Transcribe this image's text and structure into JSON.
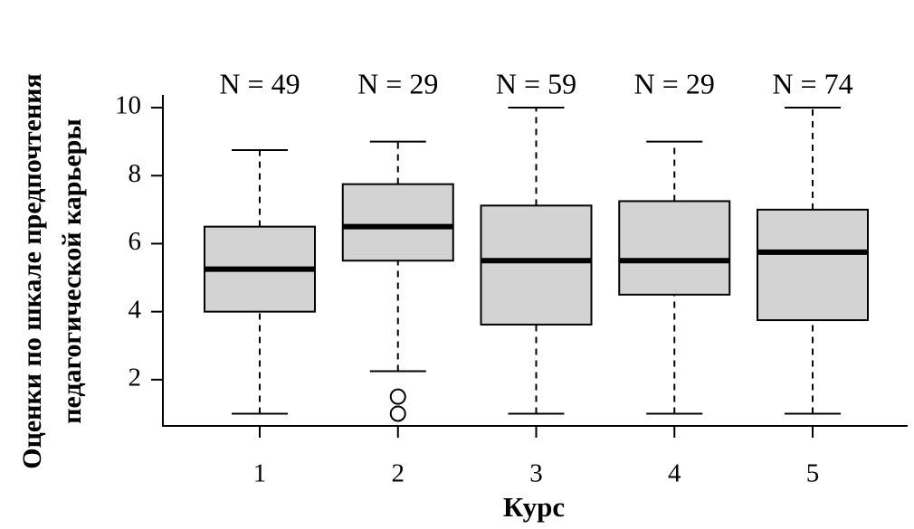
{
  "chart_data": {
    "type": "box",
    "ylabel": [
      "Оценки по шкале предпочтения",
      "педагогической карьеры"
    ],
    "xlabel": "Курс",
    "categories": [
      "1",
      "2",
      "3",
      "4",
      "5"
    ],
    "annotations": [
      "N = 49",
      "N = 29",
      "N = 59",
      "N = 29",
      "N = 74"
    ],
    "boxes": [
      {
        "min": 1,
        "q1": 4.0,
        "median": 5.25,
        "q3": 6.5,
        "max": 8.75,
        "outliers": []
      },
      {
        "min": 2.25,
        "q1": 5.5,
        "median": 6.5,
        "q3": 7.75,
        "max": 9,
        "outliers": [
          1.5,
          1.0
        ]
      },
      {
        "min": 1,
        "q1": 3.62,
        "median": 5.5,
        "q3": 7.12,
        "max": 10,
        "outliers": []
      },
      {
        "min": 1,
        "q1": 4.5,
        "median": 5.5,
        "q3": 7.25,
        "max": 9,
        "outliers": []
      },
      {
        "min": 1,
        "q1": 3.75,
        "median": 5.75,
        "q3": 7.0,
        "max": 10,
        "outliers": []
      }
    ],
    "color": "#d3d3d3",
    "ylim": [
      0.64,
      10.36
    ],
    "yticks": [
      2,
      4,
      6,
      8,
      10
    ]
  }
}
